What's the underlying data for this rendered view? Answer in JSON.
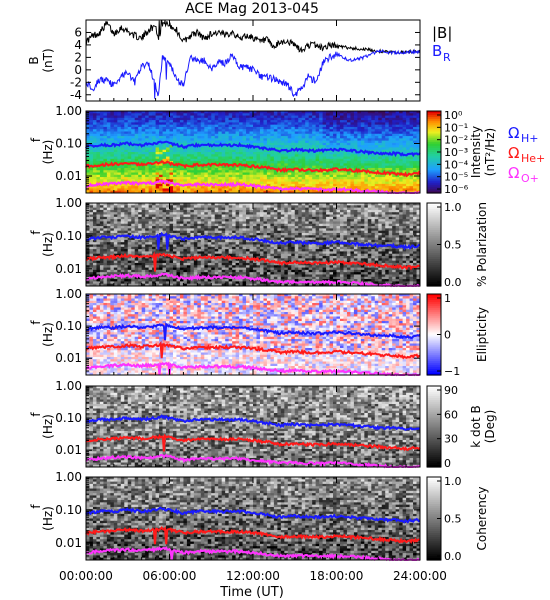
{
  "title": "ACE Mag 2013-045",
  "colors": {
    "b_total": "#000000",
    "b_r": "#1a1aff",
    "omega_h": "#1a1aff",
    "omega_he": "#ff1a1a",
    "omega_o": "#ff33ff"
  },
  "chart_data": {
    "type": "line",
    "x_unit": "Time (UT)",
    "xlabel": "Time (UT)",
    "xlim": [
      0,
      24
    ],
    "x_ticks": [
      {
        "value": 0,
        "label": "00:00:00"
      },
      {
        "value": 6,
        "label": "06:00:00"
      },
      {
        "value": 12,
        "label": "12:00:00"
      },
      {
        "value": 18,
        "label": "18:00:00"
      },
      {
        "value": 24,
        "label": "24:00:00"
      }
    ],
    "panels": [
      {
        "id": "mag",
        "type": "line",
        "ylabel": "B",
        "yunit": "(nT)",
        "ylim": [
          -5,
          8
        ],
        "y_ticks": [
          "6",
          "4",
          "2",
          "0",
          "-2",
          "-4"
        ],
        "y_tick_values": [
          6,
          4,
          2,
          0,
          -2,
          -4
        ],
        "legend": [
          "|B|",
          "B",
          "R"
        ],
        "series": [
          {
            "name": "|B|",
            "x": [
              0,
              0.5,
              1,
              1.5,
              2,
              2.5,
              3,
              3.5,
              4,
              4.5,
              5,
              5.2,
              5.5,
              6,
              6.5,
              7,
              7.5,
              8,
              8.5,
              9,
              9.5,
              10,
              10.5,
              11,
              11.5,
              12,
              12.5,
              13,
              13.5,
              14,
              14.5,
              15,
              15.5,
              16,
              16.5,
              17,
              17.5,
              18,
              19,
              20,
              21,
              22,
              23,
              24
            ],
            "values": [
              4.5,
              5.5,
              6.0,
              7.5,
              5.8,
              6.8,
              6.2,
              5.5,
              5.0,
              6.5,
              7.0,
              5.0,
              7.5,
              7.2,
              6.4,
              4.5,
              5.5,
              6.0,
              5.0,
              5.8,
              6.0,
              5.5,
              6.2,
              5.0,
              5.5,
              5.2,
              4.5,
              4.8,
              3.5,
              4.5,
              4.5,
              4.0,
              3.0,
              4.0,
              4.0,
              3.5,
              4.0,
              3.8,
              3.5,
              3.3,
              3.0,
              2.8,
              2.8,
              3.0
            ]
          },
          {
            "name": "B_R",
            "x": [
              0,
              0.5,
              1,
              1.5,
              2,
              2.5,
              3,
              3.5,
              4,
              4.5,
              5,
              5.2,
              5.5,
              6,
              6.5,
              7,
              7.5,
              8,
              8.5,
              9,
              9.5,
              10,
              10.5,
              11,
              11.5,
              12,
              12.5,
              13,
              13.5,
              14,
              14.5,
              15,
              15.5,
              16,
              16.5,
              17,
              17.5,
              18,
              19,
              20,
              21,
              22,
              23,
              24
            ],
            "values": [
              -2.0,
              -3.0,
              -1.5,
              -1.8,
              -2.5,
              -1.0,
              -0.5,
              -2.0,
              0.5,
              1.0,
              -2.5,
              -4.0,
              2.0,
              1.0,
              -1.5,
              -2.5,
              2.0,
              1.5,
              1.5,
              0.0,
              1.5,
              1.0,
              2.5,
              0.5,
              0.5,
              0.0,
              -1.0,
              -1.2,
              -1.5,
              -2.0,
              -2.5,
              -4.0,
              -3.0,
              -1.0,
              -2.0,
              1.0,
              2.0,
              2.5,
              1.5,
              2.0,
              3.0,
              2.8,
              2.8,
              3.0
            ]
          }
        ]
      },
      {
        "id": "intensity",
        "type": "heatmap",
        "ylabel": "f",
        "yunit": "(Hz)",
        "ylim": [
          0.003,
          1.0
        ],
        "yscale": "log",
        "y_ticks": [
          "1.00",
          "0.10",
          "0.01"
        ],
        "colorbar": {
          "label": "Intensity",
          "unit": "(nT²/Hz)",
          "ticks": [
            "10⁰",
            "10⁻¹",
            "10⁻²",
            "10⁻³",
            "10⁻⁴",
            "10⁻⁵",
            "10⁻⁶"
          ],
          "scale": "rainbow"
        },
        "legend": [
          "Ω",
          "H+",
          "Ω",
          "He+",
          "Ω",
          "O+"
        ]
      },
      {
        "id": "polarization",
        "type": "heatmap",
        "ylabel": "f",
        "yunit": "(Hz)",
        "yscale": "log",
        "y_ticks": [
          "1.00",
          "0.10",
          "0.01"
        ],
        "colorbar": {
          "label": "% Polarization",
          "ticks": [
            "1.0",
            "0.5",
            "0.0"
          ],
          "scale": "gray"
        }
      },
      {
        "id": "ellipticity",
        "type": "heatmap",
        "ylabel": "f",
        "yunit": "(Hz)",
        "yscale": "log",
        "y_ticks": [
          "1.00",
          "0.10",
          "0.01"
        ],
        "colorbar": {
          "label": "Ellipticity",
          "ticks": [
            "1",
            "0",
            "−1"
          ],
          "scale": "bwr"
        }
      },
      {
        "id": "kdotb",
        "type": "heatmap",
        "ylabel": "f",
        "yunit": "(Hz)",
        "yscale": "log",
        "y_ticks": [
          "1.00",
          "0.10",
          "0.01"
        ],
        "colorbar": {
          "label": "k dot B",
          "unit": "(Deg)",
          "ticks": [
            "90",
            "60",
            "30",
            "0"
          ],
          "scale": "gray"
        }
      },
      {
        "id": "coherency",
        "type": "heatmap",
        "ylabel": "f",
        "yunit": "(Hz)",
        "yscale": "log",
        "y_ticks": [
          "1.00",
          "0.10",
          "0.01"
        ],
        "colorbar": {
          "label": "Coherency",
          "ticks": [
            "1.0",
            "0.5",
            "0.0"
          ],
          "scale": "gray"
        }
      }
    ],
    "gyrofrequency_lines": {
      "x": [
        0,
        1,
        2,
        3,
        4,
        5,
        5.5,
        6,
        7,
        8,
        9,
        10,
        11,
        12,
        13,
        14,
        15,
        16,
        17,
        18,
        19,
        20,
        21,
        22,
        23,
        24
      ],
      "omega_h_plus_hz": [
        0.08,
        0.09,
        0.09,
        0.1,
        0.09,
        0.1,
        0.11,
        0.1,
        0.08,
        0.09,
        0.09,
        0.09,
        0.09,
        0.08,
        0.07,
        0.06,
        0.065,
        0.06,
        0.06,
        0.065,
        0.06,
        0.055,
        0.05,
        0.05,
        0.045,
        0.05
      ],
      "omega_he_plus_hz": [
        0.02,
        0.022,
        0.023,
        0.025,
        0.023,
        0.025,
        0.027,
        0.025,
        0.02,
        0.022,
        0.022,
        0.022,
        0.022,
        0.02,
        0.018,
        0.015,
        0.016,
        0.015,
        0.015,
        0.016,
        0.015,
        0.014,
        0.013,
        0.012,
        0.011,
        0.012
      ],
      "omega_o_plus_hz": [
        0.005,
        0.0055,
        0.006,
        0.0062,
        0.0058,
        0.0062,
        0.0068,
        0.0062,
        0.005,
        0.0055,
        0.0055,
        0.0055,
        0.0055,
        0.005,
        0.0045,
        0.004,
        0.0041,
        0.004,
        0.0038,
        0.004,
        0.0038,
        0.0035,
        0.0033,
        0.003,
        0.0029,
        0.003
      ]
    }
  }
}
